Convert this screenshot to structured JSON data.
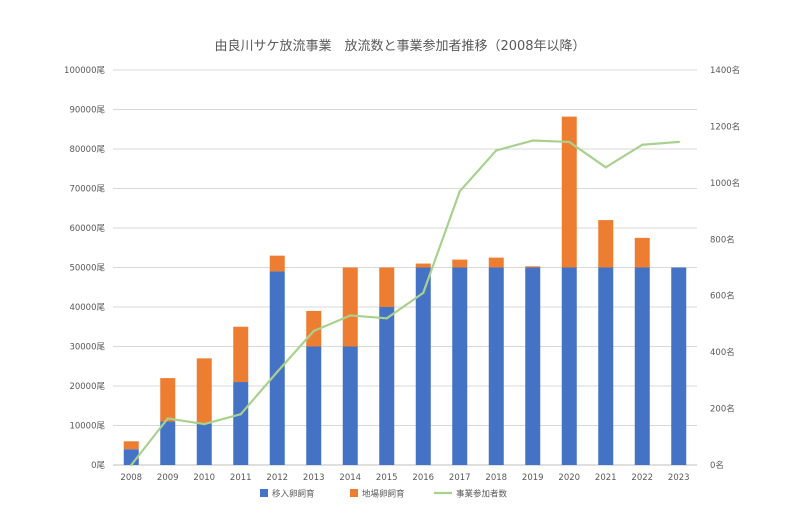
{
  "chart_data": {
    "type": "bar",
    "stacked": true,
    "title": "由良川サケ放流事業　放流数と事業参加者推移（2008年以降）",
    "categories": [
      "2008",
      "2009",
      "2010",
      "2011",
      "2012",
      "2013",
      "2014",
      "2015",
      "2016",
      "2017",
      "2018",
      "2019",
      "2020",
      "2021",
      "2022",
      "2023"
    ],
    "series": [
      {
        "name": "移入卵飼育",
        "kind": "bar",
        "axis": "left",
        "color": "#4472c4",
        "values": [
          4000,
          11000,
          10500,
          21000,
          49000,
          30000,
          30000,
          40000,
          50000,
          50000,
          50000,
          50000,
          50000,
          50000,
          50000,
          50000
        ]
      },
      {
        "name": "地場卵飼育",
        "kind": "bar",
        "axis": "left",
        "color": "#ed7d31",
        "values": [
          2000,
          11000,
          16500,
          14000,
          4000,
          9000,
          20000,
          10000,
          1000,
          2000,
          2500,
          300,
          38200,
          12000,
          7500,
          0
        ]
      },
      {
        "name": "事業参加者数",
        "kind": "line",
        "axis": "right",
        "color": "#a9d18e",
        "values": [
          0,
          165,
          145,
          180,
          330,
          475,
          530,
          520,
          610,
          970,
          1115,
          1150,
          1145,
          1055,
          1135,
          1145
        ]
      }
    ],
    "left_axis": {
      "ylim": [
        0,
        100000
      ],
      "step": 10000,
      "unit": "尾"
    },
    "right_axis": {
      "ylim": [
        0,
        1400
      ],
      "step": 200,
      "unit": "名"
    },
    "grid": true,
    "legend_position": "bottom"
  }
}
